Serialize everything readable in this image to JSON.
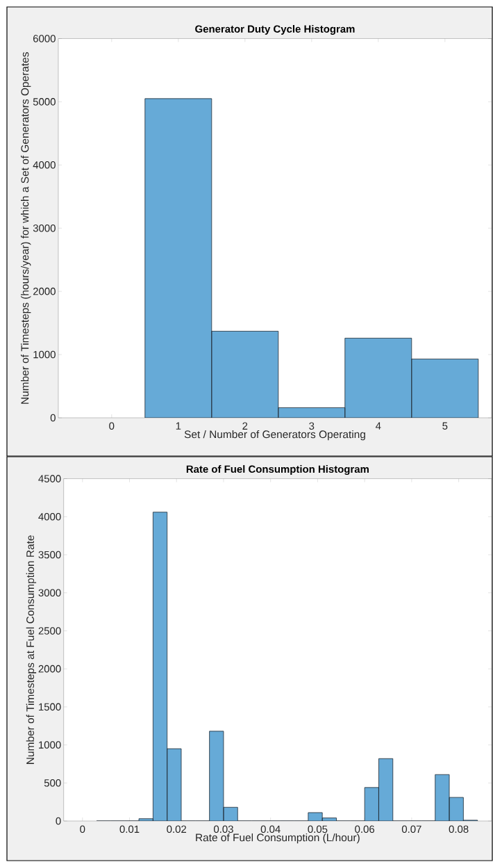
{
  "chart_data": [
    {
      "type": "histogram",
      "title": "Generator Duty Cycle Histogram",
      "xlabel": "Set / Number of Generators Operating",
      "ylabel": "Number of Timesteps (hours/year) for which a Set of Generators Operates",
      "bins": [
        0.5,
        1.5,
        2.5,
        3.5,
        4.5,
        5.5
      ],
      "values": [
        5050,
        1370,
        160,
        1260,
        930
      ],
      "color": "#66aad7",
      "xlim": [
        -0.8,
        5.7
      ],
      "ylim": [
        0,
        6000
      ],
      "xticks": [
        0,
        1,
        2,
        3,
        4,
        5
      ],
      "yticks": [
        0,
        1000,
        2000,
        3000,
        4000,
        5000,
        6000
      ]
    },
    {
      "type": "histogram",
      "title": "Rate of Fuel Consumption Histogram",
      "xlabel": "Rate of Fuel Consumption (L/hour)",
      "ylabel": "Number of Timesteps at Fuel Consumption Rate",
      "bins": [
        0.003,
        0.006,
        0.009,
        0.012,
        0.015,
        0.018,
        0.021,
        0.024,
        0.027,
        0.03,
        0.033,
        0.036,
        0.039,
        0.042,
        0.045,
        0.048,
        0.051,
        0.054,
        0.057,
        0.06,
        0.063,
        0.066,
        0.069,
        0.072,
        0.075,
        0.078,
        0.081,
        0.084
      ],
      "values": [
        0,
        0,
        0,
        30,
        4060,
        950,
        0,
        0,
        1180,
        180,
        0,
        0,
        0,
        0,
        0,
        110,
        40,
        0,
        0,
        440,
        820,
        0,
        0,
        0,
        610,
        310,
        10
      ],
      "color": "#66aad7",
      "xlim": [
        -0.004,
        0.087
      ],
      "ylim": [
        0,
        4500
      ],
      "xticks": [
        0,
        0.01,
        0.02,
        0.03,
        0.04,
        0.05,
        0.06,
        0.07,
        0.08
      ],
      "yticks": [
        0,
        500,
        1000,
        1500,
        2000,
        2500,
        3000,
        3500,
        4000,
        4500
      ]
    }
  ]
}
